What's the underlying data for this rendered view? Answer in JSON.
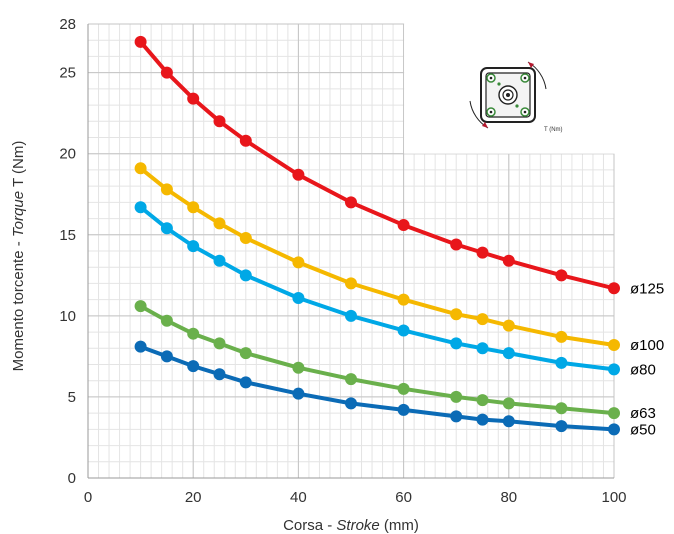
{
  "chart_data": {
    "type": "line",
    "xlabel_prefix": "Corsa - ",
    "xlabel_italic": "Stroke",
    "xlabel_suffix": " (mm)",
    "ylabel_prefix": "Momento torcente - ",
    "ylabel_italic": "Torque",
    "ylabel_suffix": "  T (Nm)",
    "xlim": [
      0,
      100
    ],
    "ylim": [
      0,
      28
    ],
    "x_ticks": [
      0,
      20,
      40,
      60,
      80,
      100
    ],
    "y_ticks": [
      0,
      5,
      10,
      15,
      20,
      25,
      28
    ],
    "grid": true,
    "inset_label": "T (Nm)",
    "series": [
      {
        "name": "ø125",
        "color": "#e8161b",
        "x": [
          10,
          15,
          20,
          25,
          30,
          40,
          50,
          60,
          70,
          75,
          80,
          90,
          100
        ],
        "y": [
          26.9,
          25.0,
          23.4,
          22.0,
          20.8,
          18.7,
          17.0,
          15.6,
          14.4,
          13.9,
          13.4,
          12.5,
          11.7
        ]
      },
      {
        "name": "ø100",
        "color": "#f5b800",
        "x": [
          10,
          15,
          20,
          25,
          30,
          40,
          50,
          60,
          70,
          75,
          80,
          90,
          100
        ],
        "y": [
          19.1,
          17.8,
          16.7,
          15.7,
          14.8,
          13.3,
          12.0,
          11.0,
          10.1,
          9.8,
          9.4,
          8.7,
          8.2
        ]
      },
      {
        "name": "ø80",
        "color": "#00a8e6",
        "x": [
          10,
          15,
          20,
          25,
          30,
          40,
          50,
          60,
          70,
          75,
          80,
          90,
          100
        ],
        "y": [
          16.7,
          15.4,
          14.3,
          13.4,
          12.5,
          11.1,
          10.0,
          9.1,
          8.3,
          8.0,
          7.7,
          7.1,
          6.7
        ]
      },
      {
        "name": "ø63",
        "color": "#6ab04c",
        "x": [
          10,
          15,
          20,
          25,
          30,
          40,
          50,
          60,
          70,
          75,
          80,
          90,
          100
        ],
        "y": [
          10.6,
          9.7,
          8.9,
          8.3,
          7.7,
          6.8,
          6.1,
          5.5,
          5.0,
          4.8,
          4.6,
          4.3,
          4.0
        ]
      },
      {
        "name": "ø50",
        "color": "#0b6bb6",
        "x": [
          10,
          15,
          20,
          25,
          30,
          40,
          50,
          60,
          70,
          75,
          80,
          90,
          100
        ],
        "y": [
          8.1,
          7.5,
          6.9,
          6.4,
          5.9,
          5.2,
          4.6,
          4.2,
          3.8,
          3.6,
          3.5,
          3.2,
          3.0
        ]
      }
    ]
  }
}
